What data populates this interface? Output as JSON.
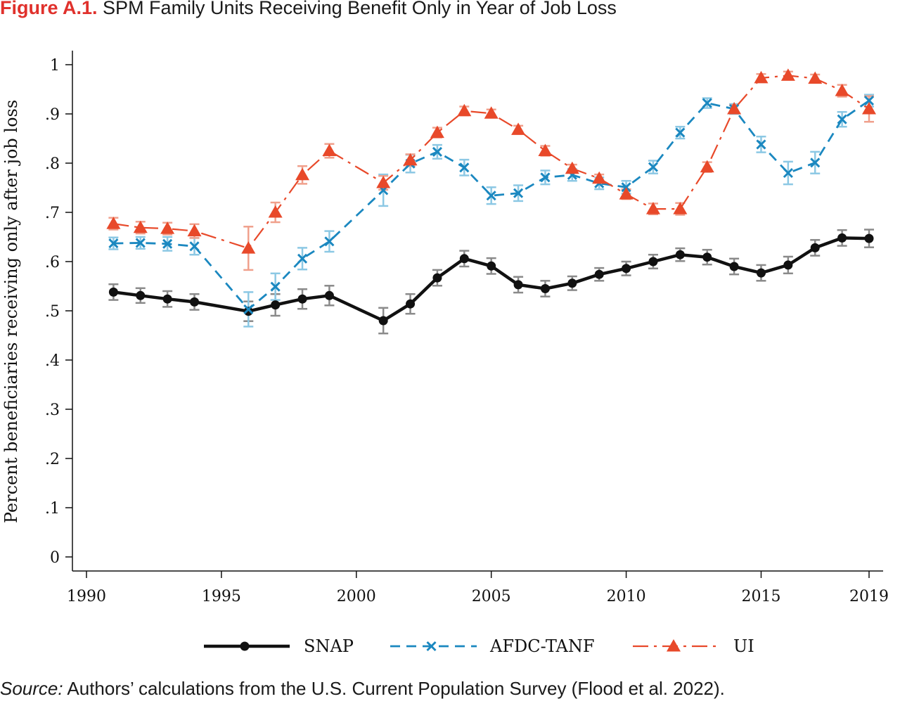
{
  "title": {
    "label": "Figure A.1.",
    "text": "SPM Family Units Receiving Benefit Only in Year of Job Loss"
  },
  "source": {
    "label": "Source:",
    "text": "Authors’ calculations from the U.S. Current Population Survey (Flood et al. 2022)."
  },
  "colors": {
    "snap": "#111111",
    "afdc": "#1b88c0",
    "ui": "#e8492a",
    "snap_ci": "#8a8a8a",
    "afdc_ci": "#8cc8e4",
    "ui_ci": "#f0a08c"
  },
  "chart_data": {
    "type": "line",
    "xlabel": "",
    "ylabel": "Percent beneficiaries receiving only after job loss",
    "xlim": [
      1990,
      2019
    ],
    "ylim": [
      0,
      1
    ],
    "xticks": [
      "1990",
      "1995",
      "2000",
      "2005",
      "2010",
      "2015",
      "2019"
    ],
    "yticks": [
      "0",
      ".1",
      ".2",
      ".3",
      ".4",
      ".5",
      ".6",
      ".7",
      ".8",
      ".9",
      "1"
    ],
    "grid": false,
    "legend_position": "bottom",
    "series": [
      {
        "key": "snap",
        "name": "SNAP",
        "marker": "circle",
        "line": "solid",
        "x": [
          1991,
          1992,
          1993,
          1994,
          1996,
          1997,
          1998,
          1999,
          2001,
          2002,
          2003,
          2004,
          2005,
          2006,
          2007,
          2008,
          2009,
          2010,
          2011,
          2012,
          2013,
          2014,
          2015,
          2016,
          2017,
          2018,
          2019
        ],
        "y": [
          0.538,
          0.531,
          0.524,
          0.518,
          0.499,
          0.512,
          0.524,
          0.531,
          0.48,
          0.514,
          0.567,
          0.606,
          0.591,
          0.553,
          0.545,
          0.556,
          0.574,
          0.586,
          0.6,
          0.614,
          0.609,
          0.59,
          0.577,
          0.593,
          0.628,
          0.648,
          0.647
        ],
        "err": [
          0.016,
          0.015,
          0.016,
          0.016,
          0.02,
          0.022,
          0.02,
          0.02,
          0.026,
          0.02,
          0.016,
          0.016,
          0.016,
          0.016,
          0.016,
          0.014,
          0.013,
          0.014,
          0.014,
          0.013,
          0.015,
          0.016,
          0.016,
          0.017,
          0.016,
          0.016,
          0.018
        ]
      },
      {
        "key": "afdc",
        "name": "AFDC-TANF",
        "marker": "x",
        "line": "dashed",
        "x": [
          1991,
          1992,
          1993,
          1994,
          1996,
          1997,
          1998,
          1999,
          2001,
          2002,
          2003,
          2004,
          2005,
          2006,
          2007,
          2008,
          2009,
          2010,
          2011,
          2012,
          2013,
          2014,
          2015,
          2016,
          2017,
          2018,
          2019
        ],
        "y": [
          0.637,
          0.638,
          0.636,
          0.631,
          0.503,
          0.549,
          0.606,
          0.641,
          0.745,
          0.799,
          0.823,
          0.791,
          0.734,
          0.739,
          0.771,
          0.776,
          0.759,
          0.751,
          0.792,
          0.862,
          0.922,
          0.91,
          0.838,
          0.78,
          0.801,
          0.889,
          0.927
        ],
        "err": [
          0.012,
          0.012,
          0.014,
          0.017,
          0.035,
          0.027,
          0.022,
          0.021,
          0.032,
          0.018,
          0.014,
          0.016,
          0.017,
          0.016,
          0.014,
          0.012,
          0.012,
          0.013,
          0.013,
          0.012,
          0.01,
          0.01,
          0.016,
          0.023,
          0.022,
          0.015,
          0.012
        ]
      },
      {
        "key": "ui",
        "name": "UI",
        "marker": "triangle",
        "line": "dashdot",
        "x": [
          1991,
          1992,
          1993,
          1994,
          1996,
          1997,
          1998,
          1999,
          2001,
          2002,
          2003,
          2004,
          2005,
          2006,
          2007,
          2008,
          2009,
          2010,
          2011,
          2012,
          2013,
          2014,
          2015,
          2016,
          2017,
          2018,
          2019
        ],
        "y": [
          0.677,
          0.669,
          0.667,
          0.662,
          0.627,
          0.7,
          0.776,
          0.825,
          0.76,
          0.806,
          0.862,
          0.906,
          0.901,
          0.868,
          0.825,
          0.789,
          0.769,
          0.737,
          0.707,
          0.707,
          0.792,
          0.91,
          0.973,
          0.978,
          0.972,
          0.947,
          0.91
        ],
        "err": [
          0.012,
          0.012,
          0.012,
          0.014,
          0.044,
          0.02,
          0.018,
          0.014,
          0.014,
          0.012,
          0.01,
          0.009,
          0.008,
          0.008,
          0.01,
          0.008,
          0.008,
          0.01,
          0.011,
          0.012,
          0.01,
          0.008,
          0.008,
          0.008,
          0.008,
          0.012,
          0.026
        ]
      }
    ]
  }
}
